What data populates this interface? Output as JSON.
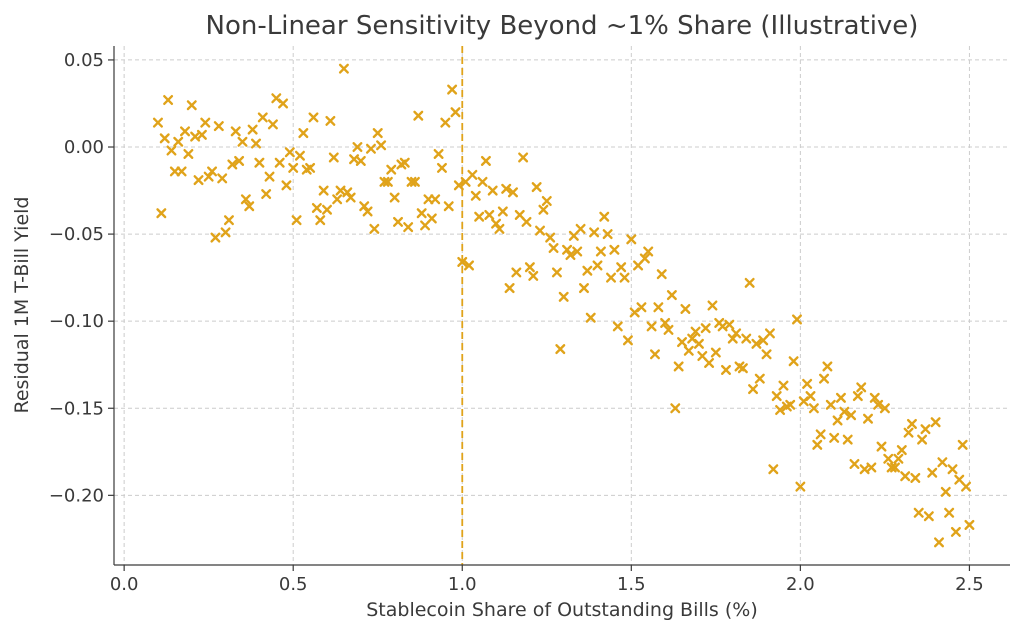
{
  "chart_data": {
    "type": "scatter",
    "title": "Non-Linear Sensitivity Beyond ~1% Share (Illustrative)",
    "xlabel": "Stablecoin Share of Outstanding Bills (%)",
    "ylabel": "Residual 1M T-Bill Yield",
    "xlim": [
      -0.03,
      2.62
    ],
    "ylim": [
      -0.24,
      0.058
    ],
    "xticks": [
      0.0,
      0.5,
      1.0,
      1.5,
      2.0,
      2.5
    ],
    "xtick_labels": [
      "0.0",
      "0.5",
      "1.0",
      "1.5",
      "2.0",
      "2.5"
    ],
    "yticks": [
      0.05,
      0.0,
      -0.05,
      -0.1,
      -0.15,
      -0.2
    ],
    "ytick_labels": [
      "0.05",
      "0.00",
      "−0.05",
      "−0.10",
      "−0.15",
      "−0.20"
    ],
    "grid": true,
    "marker_color": "#e0a31a",
    "reference_line": {
      "x": 1.0,
      "color": "#e0a31a",
      "style": "dashed"
    },
    "series": [
      {
        "name": "Residual yield",
        "marker": "x",
        "points": [
          [
            0.1,
            0.014
          ],
          [
            0.11,
            -0.038
          ],
          [
            0.12,
            0.005
          ],
          [
            0.13,
            0.027
          ],
          [
            0.14,
            -0.002
          ],
          [
            0.15,
            -0.014
          ],
          [
            0.16,
            0.003
          ],
          [
            0.17,
            -0.014
          ],
          [
            0.18,
            0.009
          ],
          [
            0.19,
            -0.004
          ],
          [
            0.2,
            0.024
          ],
          [
            0.21,
            0.006
          ],
          [
            0.22,
            -0.019
          ],
          [
            0.23,
            0.007
          ],
          [
            0.24,
            0.014
          ],
          [
            0.25,
            -0.017
          ],
          [
            0.26,
            -0.014
          ],
          [
            0.27,
            -0.052
          ],
          [
            0.28,
            0.012
          ],
          [
            0.29,
            -0.018
          ],
          [
            0.3,
            -0.049
          ],
          [
            0.31,
            -0.042
          ],
          [
            0.32,
            -0.01
          ],
          [
            0.33,
            0.009
          ],
          [
            0.34,
            -0.008
          ],
          [
            0.35,
            0.003
          ],
          [
            0.36,
            -0.03
          ],
          [
            0.37,
            -0.034
          ],
          [
            0.38,
            0.01
          ],
          [
            0.39,
            0.002
          ],
          [
            0.4,
            -0.009
          ],
          [
            0.41,
            0.017
          ],
          [
            0.42,
            -0.027
          ],
          [
            0.43,
            -0.017
          ],
          [
            0.44,
            0.013
          ],
          [
            0.45,
            0.028
          ],
          [
            0.46,
            -0.009
          ],
          [
            0.47,
            0.025
          ],
          [
            0.48,
            -0.022
          ],
          [
            0.49,
            -0.003
          ],
          [
            0.5,
            -0.012
          ],
          [
            0.51,
            -0.042
          ],
          [
            0.52,
            -0.005
          ],
          [
            0.53,
            0.008
          ],
          [
            0.54,
            -0.013
          ],
          [
            0.55,
            -0.012
          ],
          [
            0.56,
            0.017
          ],
          [
            0.57,
            -0.035
          ],
          [
            0.58,
            -0.042
          ],
          [
            0.59,
            -0.025
          ],
          [
            0.6,
            -0.036
          ],
          [
            0.61,
            0.015
          ],
          [
            0.62,
            -0.006
          ],
          [
            0.63,
            -0.03
          ],
          [
            0.64,
            -0.025
          ],
          [
            0.65,
            0.045
          ],
          [
            0.66,
            -0.026
          ],
          [
            0.67,
            -0.029
          ],
          [
            0.68,
            -0.007
          ],
          [
            0.69,
            0.0
          ],
          [
            0.7,
            -0.008
          ],
          [
            0.71,
            -0.034
          ],
          [
            0.72,
            -0.037
          ],
          [
            0.73,
            -0.001
          ],
          [
            0.74,
            -0.047
          ],
          [
            0.75,
            0.008
          ],
          [
            0.76,
            0.001
          ],
          [
            0.77,
            -0.02
          ],
          [
            0.78,
            -0.02
          ],
          [
            0.79,
            -0.013
          ],
          [
            0.8,
            -0.029
          ],
          [
            0.81,
            -0.043
          ],
          [
            0.82,
            -0.01
          ],
          [
            0.83,
            -0.009
          ],
          [
            0.84,
            -0.046
          ],
          [
            0.85,
            -0.02
          ],
          [
            0.86,
            -0.02
          ],
          [
            0.87,
            0.018
          ],
          [
            0.88,
            -0.038
          ],
          [
            0.89,
            -0.045
          ],
          [
            0.9,
            -0.03
          ],
          [
            0.91,
            -0.041
          ],
          [
            0.92,
            -0.03
          ],
          [
            0.93,
            -0.004
          ],
          [
            0.94,
            -0.012
          ],
          [
            0.95,
            0.014
          ],
          [
            0.96,
            -0.034
          ],
          [
            0.97,
            0.033
          ],
          [
            0.98,
            0.02
          ],
          [
            0.99,
            -0.022
          ],
          [
            1.0,
            -0.066
          ],
          [
            1.01,
            -0.02
          ],
          [
            1.02,
            -0.068
          ],
          [
            1.03,
            -0.016
          ],
          [
            1.04,
            -0.028
          ],
          [
            1.05,
            -0.04
          ],
          [
            1.06,
            -0.02
          ],
          [
            1.07,
            -0.008
          ],
          [
            1.08,
            -0.039
          ],
          [
            1.09,
            -0.025
          ],
          [
            1.1,
            -0.044
          ],
          [
            1.11,
            -0.047
          ],
          [
            1.12,
            -0.037
          ],
          [
            1.13,
            -0.024
          ],
          [
            1.14,
            -0.081
          ],
          [
            1.15,
            -0.026
          ],
          [
            1.16,
            -0.072
          ],
          [
            1.17,
            -0.039
          ],
          [
            1.18,
            -0.006
          ],
          [
            1.19,
            -0.043
          ],
          [
            1.2,
            -0.069
          ],
          [
            1.21,
            -0.074
          ],
          [
            1.22,
            -0.023
          ],
          [
            1.23,
            -0.048
          ],
          [
            1.24,
            -0.036
          ],
          [
            1.25,
            -0.031
          ],
          [
            1.26,
            -0.052
          ],
          [
            1.27,
            -0.058
          ],
          [
            1.28,
            -0.072
          ],
          [
            1.29,
            -0.116
          ],
          [
            1.3,
            -0.086
          ],
          [
            1.31,
            -0.059
          ],
          [
            1.32,
            -0.062
          ],
          [
            1.33,
            -0.051
          ],
          [
            1.34,
            -0.06
          ],
          [
            1.35,
            -0.047
          ],
          [
            1.36,
            -0.081
          ],
          [
            1.37,
            -0.071
          ],
          [
            1.38,
            -0.098
          ],
          [
            1.39,
            -0.049
          ],
          [
            1.4,
            -0.068
          ],
          [
            1.41,
            -0.06
          ],
          [
            1.42,
            -0.04
          ],
          [
            1.43,
            -0.05
          ],
          [
            1.44,
            -0.075
          ],
          [
            1.45,
            -0.059
          ],
          [
            1.46,
            -0.103
          ],
          [
            1.47,
            -0.069
          ],
          [
            1.48,
            -0.075
          ],
          [
            1.49,
            -0.111
          ],
          [
            1.5,
            -0.053
          ],
          [
            1.51,
            -0.095
          ],
          [
            1.52,
            -0.068
          ],
          [
            1.53,
            -0.092
          ],
          [
            1.54,
            -0.064
          ],
          [
            1.55,
            -0.06
          ],
          [
            1.56,
            -0.103
          ],
          [
            1.57,
            -0.119
          ],
          [
            1.58,
            -0.092
          ],
          [
            1.59,
            -0.073
          ],
          [
            1.6,
            -0.101
          ],
          [
            1.61,
            -0.105
          ],
          [
            1.62,
            -0.085
          ],
          [
            1.63,
            -0.15
          ],
          [
            1.64,
            -0.126
          ],
          [
            1.65,
            -0.112
          ],
          [
            1.66,
            -0.093
          ],
          [
            1.67,
            -0.117
          ],
          [
            1.68,
            -0.11
          ],
          [
            1.69,
            -0.106
          ],
          [
            1.7,
            -0.113
          ],
          [
            1.71,
            -0.12
          ],
          [
            1.72,
            -0.104
          ],
          [
            1.73,
            -0.124
          ],
          [
            1.74,
            -0.091
          ],
          [
            1.75,
            -0.118
          ],
          [
            1.76,
            -0.101
          ],
          [
            1.77,
            -0.103
          ],
          [
            1.78,
            -0.128
          ],
          [
            1.79,
            -0.102
          ],
          [
            1.8,
            -0.11
          ],
          [
            1.81,
            -0.107
          ],
          [
            1.82,
            -0.126
          ],
          [
            1.83,
            -0.127
          ],
          [
            1.84,
            -0.11
          ],
          [
            1.85,
            -0.078
          ],
          [
            1.86,
            -0.139
          ],
          [
            1.87,
            -0.113
          ],
          [
            1.88,
            -0.133
          ],
          [
            1.89,
            -0.111
          ],
          [
            1.9,
            -0.119
          ],
          [
            1.91,
            -0.107
          ],
          [
            1.92,
            -0.185
          ],
          [
            1.93,
            -0.143
          ],
          [
            1.94,
            -0.151
          ],
          [
            1.95,
            -0.137
          ],
          [
            1.96,
            -0.149
          ],
          [
            1.97,
            -0.148
          ],
          [
            1.98,
            -0.123
          ],
          [
            1.99,
            -0.099
          ],
          [
            2.0,
            -0.195
          ],
          [
            2.01,
            -0.146
          ],
          [
            2.02,
            -0.136
          ],
          [
            2.03,
            -0.143
          ],
          [
            2.04,
            -0.15
          ],
          [
            2.05,
            -0.171
          ],
          [
            2.06,
            -0.165
          ],
          [
            2.07,
            -0.133
          ],
          [
            2.08,
            -0.126
          ],
          [
            2.09,
            -0.148
          ],
          [
            2.1,
            -0.167
          ],
          [
            2.11,
            -0.157
          ],
          [
            2.12,
            -0.144
          ],
          [
            2.13,
            -0.152
          ],
          [
            2.14,
            -0.168
          ],
          [
            2.15,
            -0.154
          ],
          [
            2.16,
            -0.182
          ],
          [
            2.17,
            -0.143
          ],
          [
            2.18,
            -0.138
          ],
          [
            2.19,
            -0.185
          ],
          [
            2.2,
            -0.156
          ],
          [
            2.21,
            -0.184
          ],
          [
            2.22,
            -0.144
          ],
          [
            2.23,
            -0.148
          ],
          [
            2.24,
            -0.172
          ],
          [
            2.25,
            -0.15
          ],
          [
            2.26,
            -0.179
          ],
          [
            2.27,
            -0.184
          ],
          [
            2.28,
            -0.184
          ],
          [
            2.29,
            -0.179
          ],
          [
            2.3,
            -0.174
          ],
          [
            2.31,
            -0.189
          ],
          [
            2.32,
            -0.164
          ],
          [
            2.33,
            -0.159
          ],
          [
            2.34,
            -0.19
          ],
          [
            2.35,
            -0.21
          ],
          [
            2.36,
            -0.168
          ],
          [
            2.37,
            -0.162
          ],
          [
            2.38,
            -0.212
          ],
          [
            2.39,
            -0.187
          ],
          [
            2.4,
            -0.158
          ],
          [
            2.41,
            -0.227
          ],
          [
            2.42,
            -0.181
          ],
          [
            2.43,
            -0.198
          ],
          [
            2.44,
            -0.21
          ],
          [
            2.45,
            -0.185
          ],
          [
            2.46,
            -0.221
          ],
          [
            2.47,
            -0.191
          ],
          [
            2.48,
            -0.171
          ],
          [
            2.49,
            -0.195
          ],
          [
            2.5,
            -0.217
          ]
        ]
      }
    ]
  }
}
